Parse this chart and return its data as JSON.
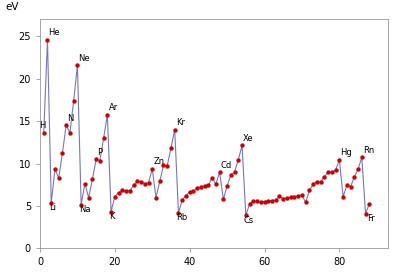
{
  "title": "",
  "ylabel": "eV",
  "xlim": [
    0,
    93
  ],
  "ylim": [
    0,
    27
  ],
  "yticks": [
    0,
    5,
    10,
    15,
    20,
    25
  ],
  "xticks": [
    0,
    20,
    40,
    60,
    80
  ],
  "line_color": "#7878b8",
  "dot_color": "#cc0000",
  "background_color": "#ffffff",
  "ionization_energies": {
    "1": 13.598,
    "2": 24.587,
    "3": 5.392,
    "4": 9.323,
    "5": 8.298,
    "6": 11.26,
    "7": 14.534,
    "8": 13.618,
    "9": 17.423,
    "10": 21.565,
    "11": 5.139,
    "12": 7.646,
    "13": 5.986,
    "14": 8.152,
    "15": 10.487,
    "16": 10.36,
    "17": 12.968,
    "18": 15.76,
    "19": 4.341,
    "20": 6.113,
    "21": 6.561,
    "22": 6.828,
    "23": 6.746,
    "24": 6.767,
    "25": 7.434,
    "26": 7.902,
    "27": 7.881,
    "28": 7.64,
    "29": 7.727,
    "30": 9.394,
    "31": 5.999,
    "32": 7.9,
    "33": 9.789,
    "34": 9.752,
    "35": 11.814,
    "36": 13.999,
    "37": 4.177,
    "38": 5.695,
    "39": 6.217,
    "40": 6.634,
    "41": 6.759,
    "42": 7.092,
    "43": 7.28,
    "44": 7.361,
    "45": 7.459,
    "46": 8.337,
    "47": 7.576,
    "48": 8.994,
    "49": 5.786,
    "50": 7.344,
    "51": 8.641,
    "52": 9.01,
    "53": 10.451,
    "54": 12.13,
    "55": 3.894,
    "56": 5.212,
    "57": 5.577,
    "58": 5.539,
    "59": 5.473,
    "60": 5.525,
    "61": 5.582,
    "62": 5.644,
    "63": 5.67,
    "64": 6.15,
    "65": 5.864,
    "66": 5.939,
    "67": 6.022,
    "68": 6.108,
    "69": 6.184,
    "70": 6.254,
    "71": 5.426,
    "72": 6.825,
    "73": 7.55,
    "74": 7.864,
    "75": 7.834,
    "76": 8.438,
    "77": 8.967,
    "78": 8.959,
    "79": 9.226,
    "80": 10.438,
    "81": 6.108,
    "82": 7.417,
    "83": 7.289,
    "84": 8.417,
    "85": 9.317,
    "86": 10.748,
    "87": 4.073,
    "88": 5.279
  },
  "labels": {
    "1": [
      "H",
      -1.2,
      0.3
    ],
    "2": [
      "He",
      0.3,
      0.3
    ],
    "3": [
      "Li",
      -0.5,
      -1.1
    ],
    "7": [
      "N",
      0.3,
      0.3
    ],
    "10": [
      "Ne",
      0.3,
      0.3
    ],
    "11": [
      "Na",
      -0.5,
      -1.1
    ],
    "15": [
      "P",
      0.3,
      0.3
    ],
    "18": [
      "Ar",
      0.3,
      0.3
    ],
    "19": [
      "K",
      -0.5,
      -1.1
    ],
    "30": [
      "Zn",
      0.3,
      0.3
    ],
    "36": [
      "Kr",
      0.3,
      0.3
    ],
    "37": [
      "Rb",
      -0.5,
      -1.1
    ],
    "48": [
      "Cd",
      0.3,
      0.3
    ],
    "54": [
      "Xe",
      0.3,
      0.3
    ],
    "55": [
      "Cs",
      -0.5,
      -1.1
    ],
    "80": [
      "Hg",
      0.3,
      0.3
    ],
    "86": [
      "Rn",
      0.3,
      0.3
    ],
    "87": [
      "Fr",
      0.3,
      -1.1
    ]
  }
}
